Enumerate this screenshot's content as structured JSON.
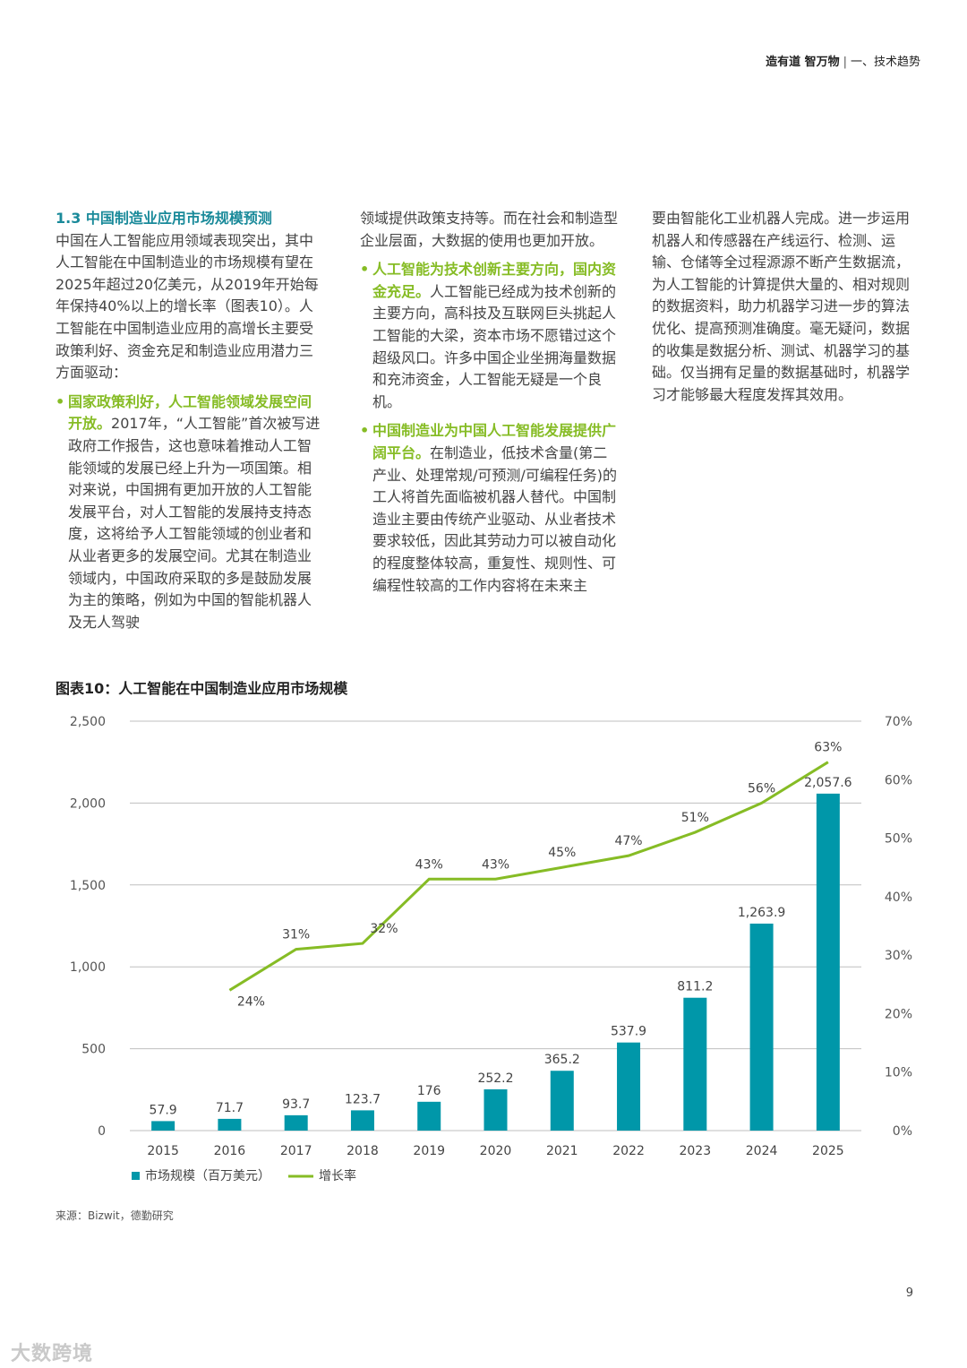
{
  "header": {
    "title_bold": "造有道 智万物",
    "separator": "|",
    "section": "一、技术趋势"
  },
  "col1": {
    "section_title": "1.3 中国制造业应用市场规模预测",
    "intro": "中国在人工智能应用领域表现突出，其中人工智能在中国制造业的市场规模有望在2025年超过20亿美元，从2019年开始每年保持40%以上的增长率（图表10）。人工智能在中国制造业应用的高增长主要受政策利好、资金充足和制造业应用潜力三方面驱动：",
    "bullet1_head": "国家政策利好，人工智能领域发展空间开放。",
    "bullet1_body": "2017年，“人工智能”首次被写进政府工作报告，这也意味着推动人工智能领域的发展已经上升为一项国策。相对来说，中国拥有更加开放的人工智能发展平台，对人工智能的发展持支持态度，这将给予人工智能领域的创业者和从业者更多的发展空间。尤其在制造业领域内，中国政府采取的多是鼓励发展为主的策略，例如为中国的智能机器人及无人驾驶"
  },
  "col2": {
    "cont": "领域提供政策支持等。而在社会和制造型企业层面，大数据的使用也更加开放。",
    "bullet2_head": "人工智能为技术创新主要方向，国内资金充足。",
    "bullet2_body": "人工智能已经成为技术创新的主要方向，高科技及互联网巨头挑起人工智能的大梁，资本市场不愿错过这个超级风口。许多中国企业坐拥海量数据和充沛资金，人工智能无疑是一个良机。",
    "bullet3_head": "中国制造业为中国人工智能发展提供广阔平台。",
    "bullet3_body": "在制造业，低技术含量(第二产业、处理常规/可预测/可编程任务)的工人将首先面临被机器人替代。中国制造业主要由传统产业驱动、从业者技术要求较低，因此其劳动力可以被自动化的程度整体较高，重复性、规则性、可编程性较高的工作内容将在未来主"
  },
  "col3": {
    "cont": "要由智能化工业机器人完成。进一步运用机器人和传感器在产线运行、检测、运输、仓储等全过程源源不断产生数据流，为人工智能的计算提供大量的、相对规则的数据资料，助力机器学习进一步的算法优化、提高预测准确度。毫无疑问，数据的收集是数据分析、测试、机器学习的基础。仅当拥有足量的数据基础时，机器学习才能够最大程度发挥其效用。"
  },
  "figure": {
    "title": "图表10：人工智能在中国制造业应用市场规模"
  },
  "chart_data": {
    "type": "bar",
    "title": "图表10：人工智能在中国制造业应用市场规模",
    "categories": [
      "2015",
      "2016",
      "2017",
      "2018",
      "2019",
      "2020",
      "2021",
      "2022",
      "2023",
      "2024",
      "2025"
    ],
    "series": [
      {
        "name": "市场规模（百万美元）",
        "type": "bar",
        "axis": "left",
        "color": "#0097a9",
        "values": [
          57.9,
          71.7,
          93.7,
          123.7,
          176,
          252.2,
          365.2,
          537.9,
          811.2,
          1263.9,
          2057.6
        ],
        "labels": [
          "57.9",
          "71.7",
          "93.7",
          "123.7",
          "176",
          "252.2",
          "365.2",
          "537.9",
          "811.2",
          "1,263.9",
          "2,057.6"
        ]
      },
      {
        "name": "增长率",
        "type": "line",
        "axis": "right",
        "color": "#86bc25",
        "values": [
          null,
          24,
          31,
          32,
          43,
          43,
          45,
          47,
          51,
          56,
          63
        ],
        "labels": [
          "",
          "24%",
          "31%",
          "32%",
          "43%",
          "43%",
          "45%",
          "47%",
          "51%",
          "56%",
          "63%"
        ]
      }
    ],
    "y_left": {
      "ylim": [
        0,
        2500
      ],
      "ticks": [
        "0",
        "500",
        "1,000",
        "1,500",
        "2,000",
        "2,500"
      ]
    },
    "y_right": {
      "ylim": [
        0,
        70
      ],
      "ticks": [
        "0%",
        "10%",
        "20%",
        "30%",
        "40%",
        "50%",
        "60%",
        "70%"
      ]
    },
    "grid": true,
    "legend": "bottom-left"
  },
  "source": "来源：Bizwit，德勤研究",
  "page_number": "9",
  "watermark": "大数跨境"
}
